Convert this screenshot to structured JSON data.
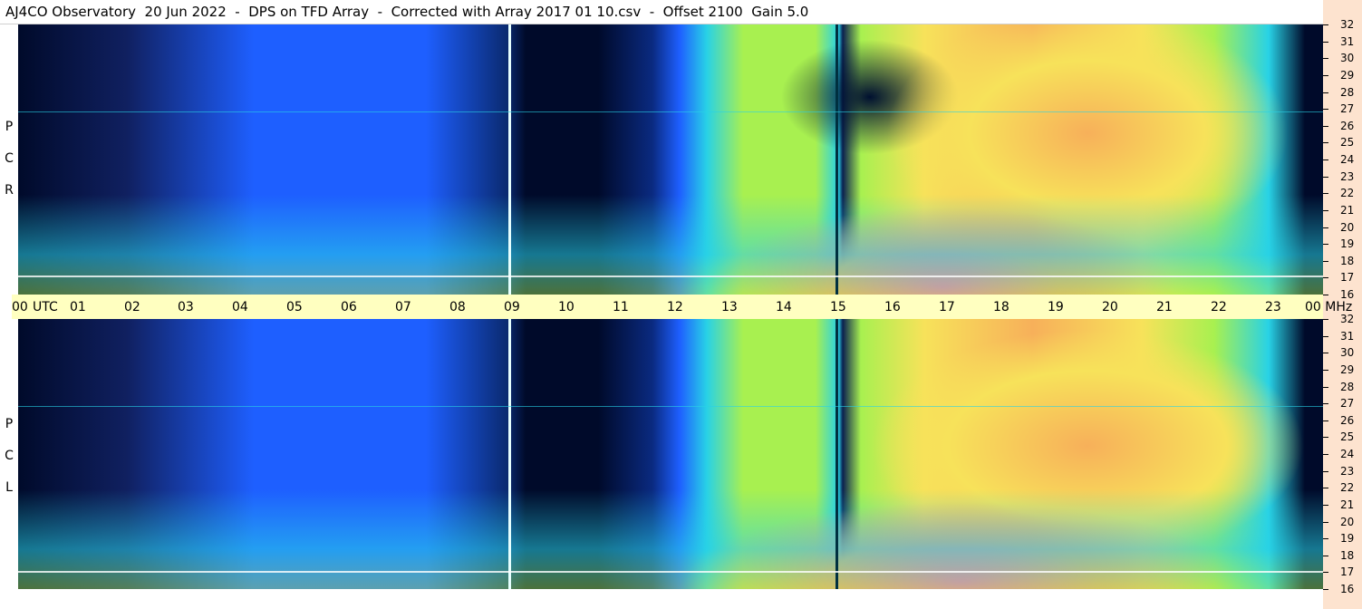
{
  "title": "AJ4CO Observatory  20 Jun 2022  -  DPS on TFD Array  -  Corrected with Array 2017 01 10.csv  -  Offset 2100  Gain 5.0",
  "panels": {
    "top": {
      "label_letters": [
        "R",
        "C",
        "P"
      ]
    },
    "bottom": {
      "label_letters": [
        "L",
        "C",
        "P"
      ]
    }
  },
  "time_axis": {
    "labels": [
      "00",
      "UTC",
      "01",
      "02",
      "03",
      "04",
      "05",
      "06",
      "07",
      "08",
      "09",
      "10",
      "11",
      "12",
      "13",
      "14",
      "15",
      "16",
      "17",
      "18",
      "19",
      "20",
      "21",
      "22",
      "23",
      "00 MHz"
    ]
  },
  "freq_axis": {
    "labels": [
      "32",
      "31",
      "30",
      "29",
      "28",
      "27",
      "26",
      "25",
      "24",
      "23",
      "22",
      "21",
      "20",
      "19",
      "18",
      "17",
      "16"
    ]
  },
  "colors": {
    "dark": "#000a2a",
    "blue": "#1e5fff",
    "cyan": "#28d2e6",
    "green": "#a8f050",
    "yellow": "#f7e25a",
    "orange": "#f7b05a",
    "pink": "#f060d0",
    "axis_bg": "#fde3cf",
    "time_bg": "#ffffc0"
  }
}
